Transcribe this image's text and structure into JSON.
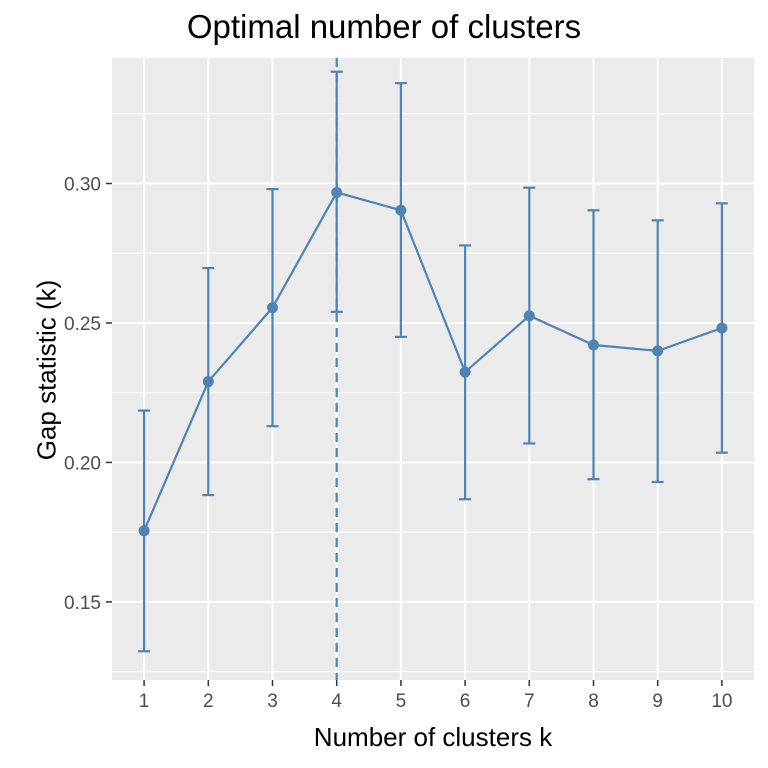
{
  "chart_data": {
    "type": "line",
    "title": "Optimal number of clusters",
    "xlabel": "Number of clusters k",
    "ylabel": "Gap statistic (k)",
    "x": [
      1,
      2,
      3,
      4,
      5,
      6,
      7,
      8,
      9,
      10
    ],
    "xlim": [
      0.5,
      10.5
    ],
    "ylim": [
      0.122,
      0.345
    ],
    "yticks": [
      0.15,
      0.2,
      0.25,
      0.3
    ],
    "ytick_labels": [
      "0.15",
      "0.20",
      "0.25",
      "0.30"
    ],
    "xtick_labels": [
      "1",
      "2",
      "3",
      "4",
      "5",
      "6",
      "7",
      "8",
      "9",
      "10"
    ],
    "series": [
      {
        "values": [
          0.1755,
          0.229,
          0.2555,
          0.2968,
          0.2904,
          0.2324,
          0.2526,
          0.2421,
          0.24,
          0.2482
        ],
        "error_lower": [
          0.1323,
          0.1883,
          0.213,
          0.254,
          0.245,
          0.1868,
          0.2068,
          0.194,
          0.193,
          0.2035
        ],
        "error_upper": [
          0.2186,
          0.2697,
          0.298,
          0.3401,
          0.336,
          0.2778,
          0.2985,
          0.2904,
          0.2868,
          0.2929
        ]
      }
    ],
    "reference_line": {
      "orientation": "vertical",
      "x": 4,
      "style": "dashed"
    },
    "grid": true,
    "colors": {
      "series": "#4e83b3",
      "panel": "#ebebeb",
      "grid": "#ffffff"
    }
  }
}
